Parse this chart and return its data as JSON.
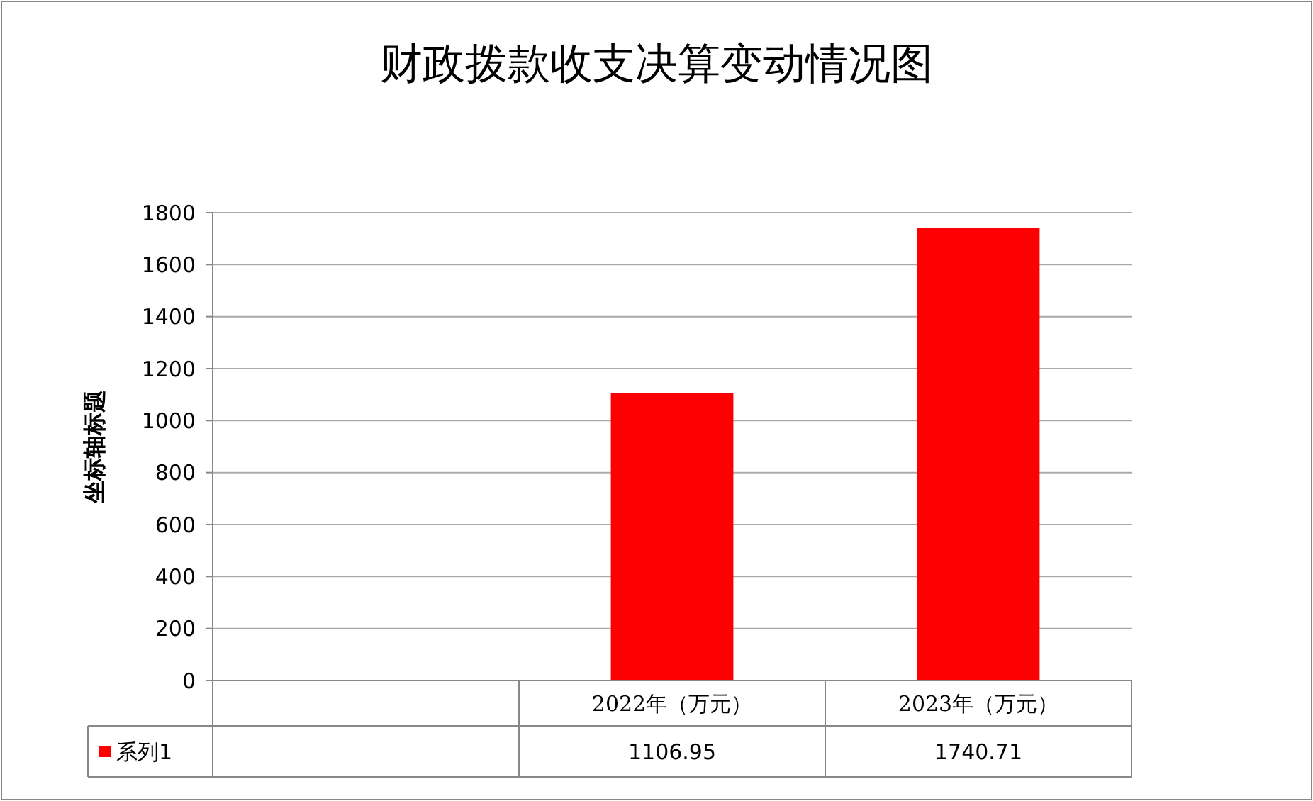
{
  "chart_data": {
    "type": "bar",
    "title": "财政拨款收支决算变动情况图",
    "ylabel": "坐标轴标题",
    "categories": [
      null,
      "2022年（万元）",
      "2023年（万元）"
    ],
    "series": [
      {
        "name": "系列1",
        "color": "#ff0000",
        "values": [
          null,
          1106.95,
          1740.71
        ]
      }
    ],
    "ylim": [
      0,
      1800
    ],
    "yticks": [
      0,
      200,
      400,
      600,
      800,
      1000,
      1200,
      1400,
      1600,
      1800
    ],
    "grid": "y",
    "data_labels": true
  }
}
